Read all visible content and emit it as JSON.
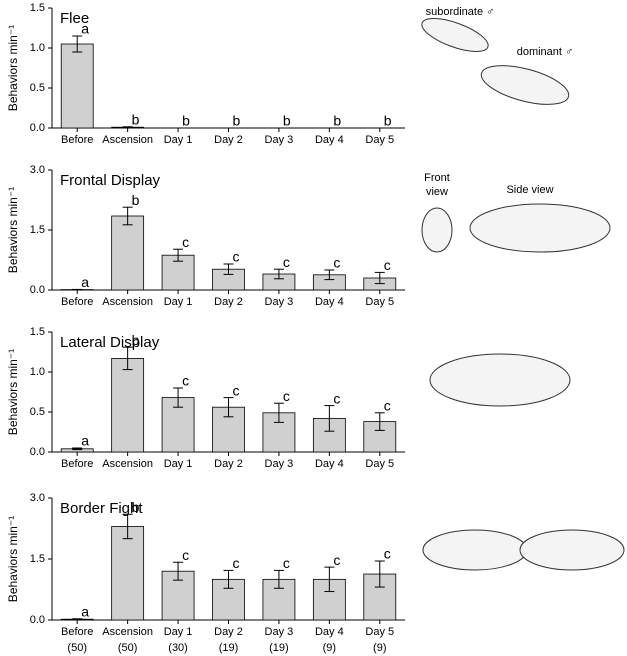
{
  "chart_data": [
    {
      "type": "bar",
      "title": "Flee",
      "y_label": "Behaviors min⁻¹",
      "color": "#d0d0d0",
      "categories": [
        "Before",
        "Ascension",
        "Day 1",
        "Day 2",
        "Day 3",
        "Day 4",
        "Day 5"
      ],
      "values": [
        1.05,
        0.01,
        0,
        0,
        0,
        0,
        0
      ],
      "errors": [
        0.1,
        0.005,
        0,
        0,
        0,
        0,
        0
      ],
      "annotations": [
        "a",
        "b",
        "b",
        "b",
        "b",
        "b",
        "b"
      ],
      "ylim": [
        0,
        1.5
      ],
      "yticks": [
        {
          "value": 0,
          "label": "0.0"
        },
        {
          "value": 0.5,
          "label": "0.5"
        },
        {
          "value": 1,
          "label": "1.0"
        },
        {
          "value": 1.5,
          "label": "1.5"
        }
      ],
      "illustration_labels": [
        "subordinate ♂",
        "dominant ♂"
      ]
    },
    {
      "type": "bar",
      "title": "Frontal Display",
      "y_label": "Behaviors min⁻¹",
      "color": "#d0d0d0",
      "categories": [
        "Before",
        "Ascension",
        "Day 1",
        "Day 2",
        "Day 3",
        "Day 4",
        "Day 5"
      ],
      "values": [
        0.01,
        1.85,
        0.87,
        0.52,
        0.4,
        0.38,
        0.3
      ],
      "errors": [
        0.005,
        0.22,
        0.15,
        0.13,
        0.12,
        0.12,
        0.14
      ],
      "annotations": [
        "a",
        "b",
        "c",
        "c",
        "c",
        "c",
        "c"
      ],
      "ylim": [
        0,
        3
      ],
      "yticks": [
        {
          "value": 0,
          "label": "0.0"
        },
        1.5,
        {
          "value": 3,
          "label": "3.0"
        }
      ],
      "illustration_labels": [
        "Front view",
        "Side view"
      ]
    },
    {
      "type": "bar",
      "title": "Lateral Display",
      "y_label": "Behaviors min⁻¹",
      "color": "#d0d0d0",
      "categories": [
        "Before",
        "Ascension",
        "Day 1",
        "Day 2",
        "Day 3",
        "Day 4",
        "Day 5"
      ],
      "values": [
        0.04,
        1.17,
        0.68,
        0.56,
        0.49,
        0.42,
        0.38
      ],
      "errors": [
        0.01,
        0.14,
        0.12,
        0.12,
        0.12,
        0.16,
        0.11
      ],
      "annotations": [
        "a",
        "b",
        "c",
        "c",
        "c",
        "c",
        "c"
      ],
      "ylim": [
        0,
        1.5
      ],
      "yticks": [
        {
          "value": 0,
          "label": "0.0"
        },
        {
          "value": 0.5,
          "label": "0.5"
        },
        {
          "value": 1,
          "label": "1.0"
        },
        {
          "value": 1.5,
          "label": "1.5"
        }
      ]
    },
    {
      "type": "bar",
      "title": "Border Fight",
      "y_label": "Behaviors min⁻¹",
      "color": "#d0d0d0",
      "categories": [
        "Before",
        "Ascension",
        "Day 1",
        "Day 2",
        "Day 3",
        "Day 4",
        "Day 5"
      ],
      "sample_sizes": [
        "(50)",
        "(50)",
        "(30)",
        "(19)",
        "(19)",
        "(9)",
        "(9)"
      ],
      "values": [
        0.02,
        2.3,
        1.2,
        1.0,
        1.0,
        1.0,
        1.13
      ],
      "errors": [
        0.01,
        0.3,
        0.22,
        0.22,
        0.22,
        0.3,
        0.32
      ],
      "annotations": [
        "a",
        "b",
        "c",
        "c",
        "c",
        "c",
        "c"
      ],
      "ylim": [
        0,
        3
      ],
      "yticks": [
        {
          "value": 0,
          "label": "0.0"
        },
        1.5,
        {
          "value": 3,
          "label": "3.0"
        }
      ]
    }
  ]
}
